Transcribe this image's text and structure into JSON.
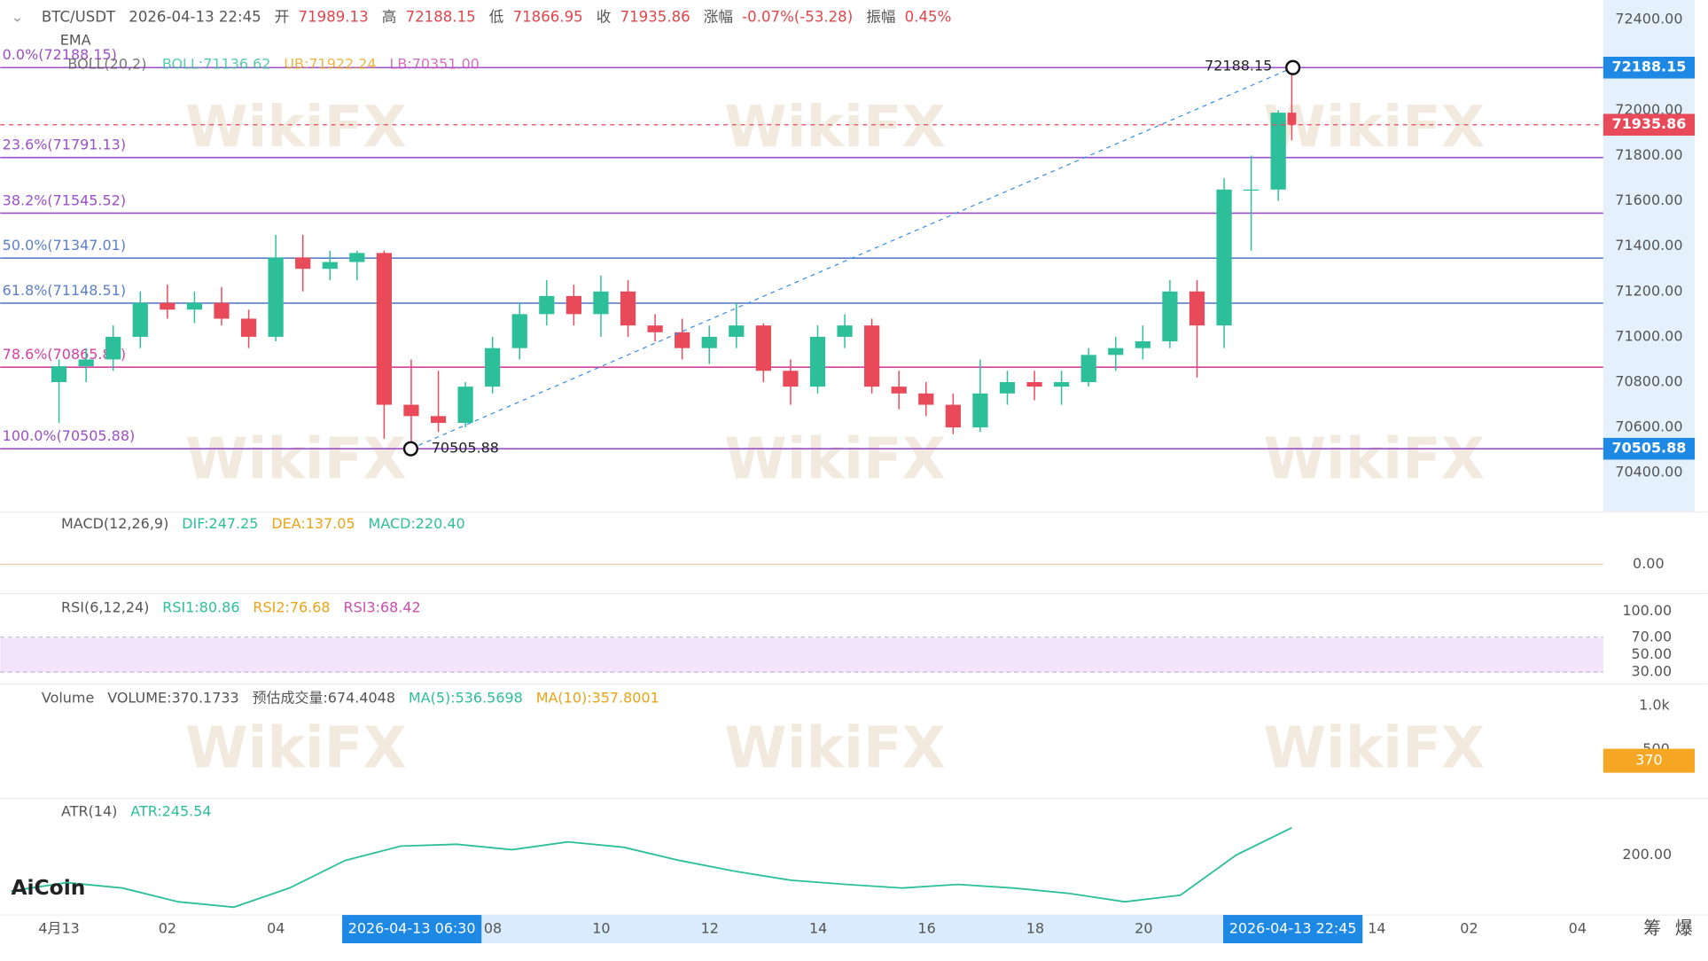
{
  "header": {
    "symbol": "BTC/USDT",
    "time": "2026-04-13 22:45",
    "open_label": "开",
    "open": 71989.13,
    "high_label": "高",
    "high": 72188.15,
    "low_label": "低",
    "low": 71866.95,
    "close_label": "收",
    "close": 71935.86,
    "change_label": "涨幅",
    "change": "-0.07%(-53.28)",
    "amplitude_label": "振幅",
    "amplitude": "0.45%"
  },
  "indicators": {
    "ema": "EMA",
    "boll": "BOLL(20,2)",
    "boll_mid": "BOLL:71136.62",
    "boll_ub": "UB:71922.24",
    "boll_lb": "LB:70351.00"
  },
  "price_axis": {
    "range": [
      70275,
      72486.5
    ],
    "ticks": [
      {
        "value": 72400,
        "label": "72400.00"
      },
      {
        "value": 72000,
        "label": "72000.00"
      },
      {
        "value": 71800,
        "label": "71800.00"
      },
      {
        "value": 71600,
        "label": "71600.00"
      },
      {
        "value": 71400,
        "label": "71400.00"
      },
      {
        "value": 71200,
        "label": "71200.00"
      },
      {
        "value": 71000,
        "label": "71000.00"
      },
      {
        "value": 70800,
        "label": "70800.00"
      },
      {
        "value": 70600,
        "label": "70600.00"
      },
      {
        "value": 70400,
        "label": "70400.00"
      }
    ]
  },
  "fib_levels": [
    {
      "label": "0.0%(72188.15)",
      "value": 72188.15,
      "color": "#9b4fc9"
    },
    {
      "label": "23.6%(71791.13)",
      "value": 71791.13,
      "color": "#9b4fc9"
    },
    {
      "label": "38.2%(71545.52)",
      "value": 71545.52,
      "color": "#9b4fc9"
    },
    {
      "label": "50.0%(71347.01)",
      "value": 71347.01,
      "color": "#5b7fc7"
    },
    {
      "label": "61.8%(71148.51)",
      "value": 71148.51,
      "color": "#5b7fc7"
    },
    {
      "label": "78.6%(70865.87)",
      "value": 70865.87,
      "color": "#d63fa0"
    },
    {
      "label": "100.0%(70505.88)",
      "value": 70505.88,
      "color": "#9b4fc9"
    }
  ],
  "swing_low": 70505.88,
  "candles": [
    [
      70800,
      70900,
      70620,
      70870
    ],
    [
      70870,
      70950,
      70800,
      70900
    ],
    [
      70900,
      71050,
      70850,
      71000
    ],
    [
      71000,
      71200,
      70950,
      71150
    ],
    [
      71150,
      71230,
      71080,
      71120
    ],
    [
      71120,
      71200,
      71060,
      71150
    ],
    [
      71150,
      71220,
      71050,
      71080
    ],
    [
      71080,
      71120,
      70950,
      71000
    ],
    [
      71000,
      71450,
      70980,
      71350
    ],
    [
      71350,
      71450,
      71200,
      71300
    ],
    [
      71300,
      71380,
      71250,
      71330
    ],
    [
      71330,
      71380,
      71250,
      71370
    ],
    [
      71370,
      71380,
      70550,
      70700
    ],
    [
      70700,
      70900,
      70500,
      70650
    ],
    [
      70650,
      70850,
      70580,
      70620
    ],
    [
      70620,
      70800,
      70600,
      70780
    ],
    [
      70780,
      71000,
      70750,
      70950
    ],
    [
      70950,
      71150,
      70900,
      71100
    ],
    [
      71100,
      71250,
      71050,
      71180
    ],
    [
      71180,
      71230,
      71050,
      71100
    ],
    [
      71100,
      71270,
      71000,
      71200
    ],
    [
      71200,
      71250,
      71000,
      71050
    ],
    [
      71050,
      71100,
      70980,
      71020
    ],
    [
      71020,
      71080,
      70900,
      70950
    ],
    [
      70950,
      71050,
      70880,
      71000
    ],
    [
      71000,
      71150,
      70950,
      71050
    ],
    [
      71050,
      71060,
      70800,
      70850
    ],
    [
      70850,
      70900,
      70700,
      70780
    ],
    [
      70780,
      71050,
      70750,
      71000
    ],
    [
      71000,
      71100,
      70950,
      71050
    ],
    [
      71050,
      71080,
      70750,
      70780
    ],
    [
      70780,
      70850,
      70680,
      70750
    ],
    [
      70750,
      70800,
      70650,
      70700
    ],
    [
      70700,
      70750,
      70570,
      70600
    ],
    [
      70600,
      70900,
      70580,
      70750
    ],
    [
      70750,
      70850,
      70700,
      70800
    ],
    [
      70800,
      70850,
      70720,
      70780
    ],
    [
      70780,
      70850,
      70700,
      70800
    ],
    [
      70800,
      70950,
      70780,
      70920
    ],
    [
      70920,
      71000,
      70850,
      70950
    ],
    [
      70950,
      71050,
      70900,
      70980
    ],
    [
      70980,
      71250,
      70950,
      71200
    ],
    [
      71200,
      71250,
      70820,
      71050
    ],
    [
      71050,
      71700,
      70950,
      71650
    ],
    [
      71650,
      71800,
      71380,
      71650
    ],
    [
      71650,
      72000,
      71600,
      71989.13
    ]
  ],
  "macd": {
    "title": "MACD(12,26,9)",
    "dif": "DIF:247.25",
    "dea": "DEA:137.05",
    "macd": "MACD:220.40",
    "tick": {
      "value": 0,
      "label": "0.00"
    }
  },
  "rsi": {
    "title": "RSI(6,12,24)",
    "rsi1": "RSI1:80.86",
    "rsi2": "RSI2:76.68",
    "rsi3": "RSI3:68.42",
    "ticks": [
      {
        "value": 100,
        "label": "100.00"
      },
      {
        "value": 70,
        "label": "70.00"
      },
      {
        "value": 50,
        "label": "50.00"
      },
      {
        "value": 30,
        "label": "30.00"
      }
    ]
  },
  "volume": {
    "title": "Volume",
    "volume": "VOLUME:370.1733",
    "estimate": "预估成交量:674.4048",
    "ma5": "MA(5):536.5698",
    "ma10": "MA(10):357.8001",
    "ticks": [
      {
        "value": 1000,
        "label": "1.0k"
      },
      {
        "value": 500,
        "label": "500"
      }
    ],
    "current": 370
  },
  "atr": {
    "title": "ATR(14)",
    "atr": "ATR:245.54",
    "tick": {
      "value": 200,
      "label": "200.00"
    },
    "values": [
      140,
      154,
      145,
      122,
      113,
      145,
      191,
      215,
      218,
      209,
      222,
      213,
      191,
      173,
      158,
      151,
      145,
      151,
      145,
      136,
      122,
      133,
      200,
      245.54
    ]
  },
  "time_axis": {
    "labels": [
      "4月13",
      "02",
      "04",
      "08",
      "10",
      "12",
      "14",
      "16",
      "18",
      "20",
      "14",
      "02",
      "04"
    ],
    "crosshair_time": "2026-04-13 06:30",
    "extra": [
      "筹",
      "爆"
    ]
  },
  "logo": "AiCoin",
  "watermark": "WikiFX"
}
